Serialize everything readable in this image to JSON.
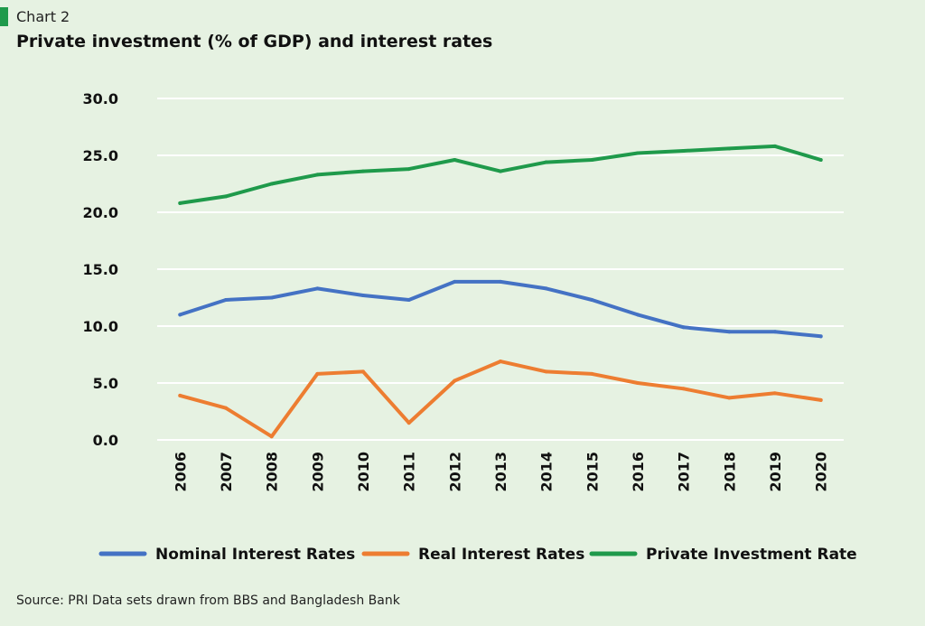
{
  "header": {
    "chart_label": "Chart 2",
    "title": "Private investment (% of GDP) and interest rates"
  },
  "source": "Source: PRI Data sets drawn from BBS and Bangladesh Bank",
  "colors": {
    "background": "#e6f2e2",
    "accent": "#1f9a4b",
    "nominal": "#4472c4",
    "real": "#ed7d31",
    "investment": "#1f9a4b",
    "grid": "#ffffff"
  },
  "chart_data": {
    "type": "line",
    "title": "Private investment (% of GDP) and interest rates",
    "x": [
      "2006",
      "2007",
      "2008",
      "2009",
      "2010",
      "2011",
      "2012",
      "2013",
      "2014",
      "2015",
      "2016",
      "2017",
      "2018",
      "2019",
      "2020"
    ],
    "ylim": [
      0,
      30
    ],
    "yticks": [
      "0.0",
      "5.0",
      "10.0",
      "15.0",
      "20.0",
      "25.0",
      "30.0"
    ],
    "grid": true,
    "legend_position": "bottom",
    "series": [
      {
        "name": "Nominal Interest Rates",
        "color": "#4472c4",
        "values": [
          11.0,
          12.3,
          12.5,
          13.3,
          12.7,
          12.3,
          13.9,
          13.9,
          13.3,
          12.3,
          11.0,
          9.9,
          9.5,
          9.5,
          9.1
        ]
      },
      {
        "name": "Real Interest Rates",
        "color": "#ed7d31",
        "values": [
          3.9,
          2.8,
          0.3,
          5.8,
          6.0,
          1.5,
          5.2,
          6.9,
          6.0,
          5.8,
          5.0,
          4.5,
          3.7,
          4.1,
          3.5
        ]
      },
      {
        "name": "Private Investment Rate",
        "color": "#1f9a4b",
        "values": [
          20.8,
          21.4,
          22.5,
          23.3,
          23.6,
          23.8,
          24.6,
          23.6,
          24.4,
          24.6,
          25.2,
          25.4,
          25.6,
          25.8,
          24.6
        ]
      }
    ]
  }
}
